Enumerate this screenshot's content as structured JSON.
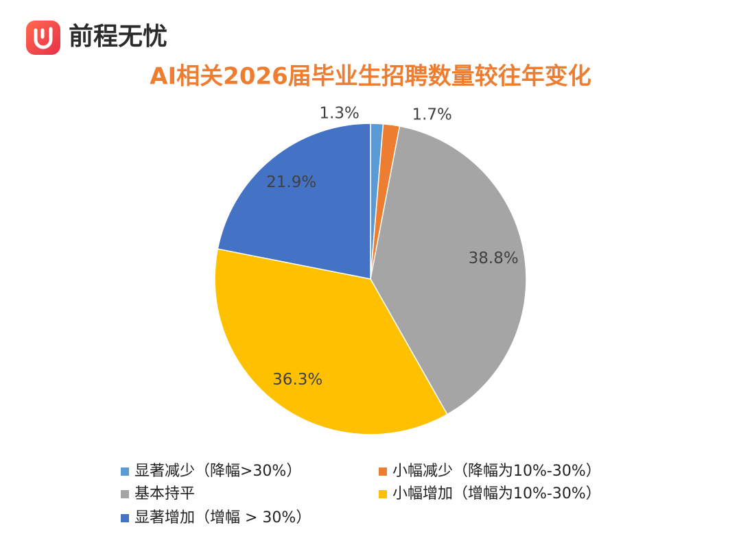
{
  "brand": "前程无忧",
  "chart_data": {
    "type": "pie",
    "title": "AI相关2026届毕业生招聘数量较往年变化",
    "categories": [
      "显著减少（降幅>30%）",
      "小幅减少（降幅为10%-30%）",
      "基本持平",
      "小幅增加（增幅为10%-30%）",
      "显著增加（增幅 > 30%）"
    ],
    "values": [
      1.3,
      1.7,
      38.8,
      36.3,
      21.9
    ],
    "value_labels": [
      "1.3%",
      "1.7%",
      "38.8%",
      "36.3%",
      "21.9%"
    ],
    "colors": [
      "#5b9bd5",
      "#ed7d31",
      "#a5a5a5",
      "#ffc000",
      "#4472c4"
    ],
    "legend": "bottom"
  }
}
